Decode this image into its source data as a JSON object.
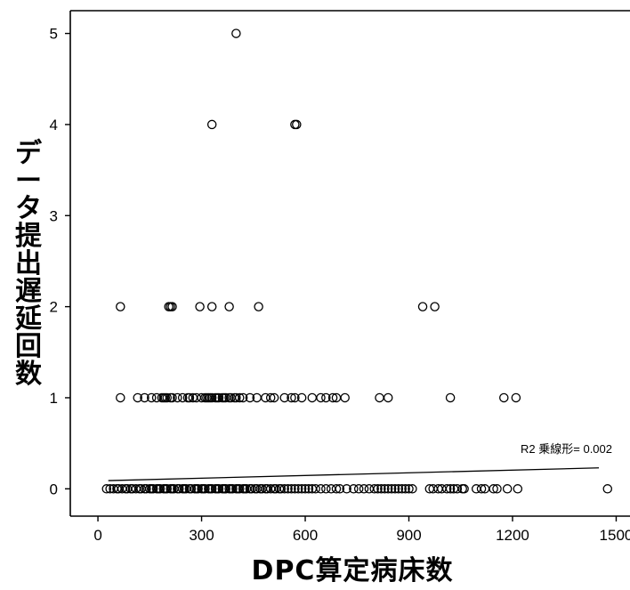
{
  "chart_data": {
    "type": "scatter",
    "title": "",
    "xlabel": "DPC算定病床数",
    "ylabel_chars": [
      "デ",
      "ー",
      "タ",
      "提",
      "出",
      "遅",
      "延",
      "回",
      "数"
    ],
    "xlim": [
      -80,
      1540
    ],
    "ylim": [
      -0.3,
      5.25
    ],
    "xticks": [
      0,
      300,
      600,
      900,
      1200,
      1500
    ],
    "yticks": [
      0,
      1,
      2,
      3,
      4,
      5
    ],
    "grid": false,
    "annotation": "R2 乗線形= 0.002",
    "fit_line": {
      "x": [
        30,
        1450
      ],
      "y": [
        0.09,
        0.23
      ]
    },
    "marker": "open-circle",
    "points": {
      "y5": [
        400
      ],
      "y4": [
        330,
        570,
        575
      ],
      "y2": [
        65,
        205,
        210,
        215,
        295,
        330,
        380,
        465,
        940,
        975
      ],
      "y1": [
        65,
        115,
        135,
        155,
        170,
        185,
        190,
        195,
        200,
        210,
        215,
        230,
        245,
        260,
        265,
        275,
        285,
        300,
        310,
        315,
        320,
        325,
        330,
        340,
        345,
        350,
        360,
        365,
        370,
        380,
        385,
        395,
        400,
        410,
        420,
        440,
        460,
        485,
        500,
        510,
        540,
        560,
        570,
        590,
        620,
        645,
        660,
        680,
        690,
        715,
        815,
        840,
        1020,
        1175,
        1210
      ],
      "y0": [
        25,
        35,
        45,
        55,
        60,
        70,
        80,
        85,
        95,
        100,
        110,
        120,
        125,
        135,
        140,
        150,
        155,
        160,
        170,
        175,
        180,
        190,
        195,
        200,
        210,
        215,
        220,
        230,
        235,
        245,
        250,
        255,
        265,
        270,
        280,
        285,
        290,
        300,
        305,
        310,
        320,
        325,
        330,
        340,
        345,
        350,
        360,
        365,
        370,
        380,
        385,
        390,
        400,
        405,
        410,
        420,
        425,
        430,
        440,
        445,
        455,
        460,
        470,
        475,
        485,
        490,
        500,
        510,
        515,
        525,
        530,
        540,
        550,
        560,
        570,
        580,
        590,
        600,
        610,
        620,
        630,
        645,
        660,
        675,
        690,
        700,
        720,
        740,
        755,
        770,
        785,
        800,
        810,
        820,
        830,
        840,
        850,
        860,
        870,
        880,
        890,
        900,
        910,
        960,
        970,
        985,
        995,
        1010,
        1020,
        1030,
        1040,
        1055,
        1060,
        1095,
        1110,
        1120,
        1145,
        1155,
        1185,
        1215,
        1475
      ]
    }
  }
}
